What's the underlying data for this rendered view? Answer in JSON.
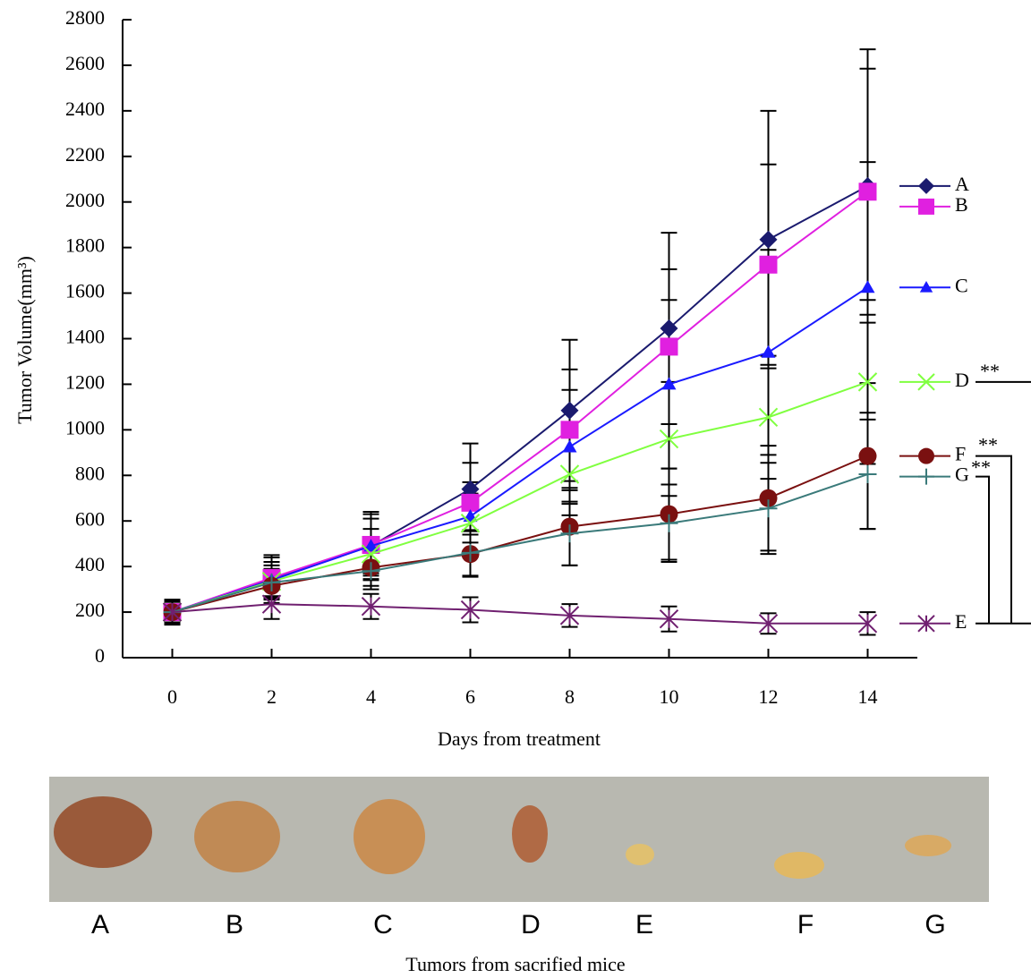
{
  "chart_data": {
    "type": "line",
    "x_label": "Days from treatment",
    "y_label": "Tumor Volume(mm³)",
    "x": [
      0,
      2,
      4,
      6,
      8,
      10,
      12,
      14
    ],
    "xlim": [
      -1,
      15
    ],
    "xticks": [
      0,
      2,
      4,
      6,
      8,
      10,
      12,
      14
    ],
    "ylim": [
      0,
      2800
    ],
    "yticks": [
      0,
      200,
      400,
      600,
      800,
      1000,
      1200,
      1400,
      1600,
      1800,
      2000,
      2200,
      2400,
      2600,
      2800
    ],
    "series": [
      {
        "name": "A",
        "color": "#1a1a6e",
        "marker": "diamond",
        "values": [
          200,
          345,
          490,
          740,
          1085,
          1445,
          1835,
          2070
        ],
        "errors": [
          55,
          105,
          150,
          200,
          310,
          420,
          565,
          600
        ]
      },
      {
        "name": "B",
        "color": "#e020e0",
        "marker": "square",
        "values": [
          200,
          350,
          495,
          680,
          1000,
          1365,
          1725,
          2045
        ],
        "errors": [
          50,
          90,
          135,
          175,
          265,
          340,
          440,
          540
        ]
      },
      {
        "name": "C",
        "color": "#1a1aff",
        "marker": "triangle",
        "values": [
          200,
          340,
          490,
          620,
          925,
          1200,
          1340,
          1625
        ],
        "errors": [
          50,
          80,
          120,
          150,
          250,
          370,
          450,
          550
        ]
      },
      {
        "name": "D",
        "color": "#80ff40",
        "marker": "x",
        "values": [
          200,
          335,
          455,
          590,
          805,
          960,
          1055,
          1210
        ],
        "errors": [
          50,
          70,
          110,
          130,
          180,
          250,
          270,
          360
        ]
      },
      {
        "name": "F",
        "color": "#7a1010",
        "marker": "circle",
        "values": [
          200,
          315,
          395,
          455,
          575,
          630,
          700,
          885
        ],
        "errors": [
          45,
          60,
          80,
          100,
          170,
          200,
          230,
          320
        ]
      },
      {
        "name": "G",
        "color": "#3a7a7a",
        "marker": "plus",
        "values": [
          200,
          330,
          380,
          460,
          545,
          590,
          655,
          805
        ],
        "errors": [
          45,
          60,
          80,
          100,
          140,
          170,
          200,
          240
        ]
      },
      {
        "name": "E",
        "color": "#702070",
        "marker": "star",
        "values": [
          200,
          235,
          225,
          210,
          185,
          170,
          150,
          150
        ],
        "errors": [
          50,
          65,
          55,
          55,
          50,
          55,
          45,
          50
        ]
      }
    ],
    "significance": [
      "**",
      "**",
      "**"
    ]
  },
  "photo": {
    "labels": [
      "A",
      "B",
      "C",
      "D",
      "E",
      "F",
      "G"
    ],
    "caption": "Tumors from sacrified mice"
  }
}
